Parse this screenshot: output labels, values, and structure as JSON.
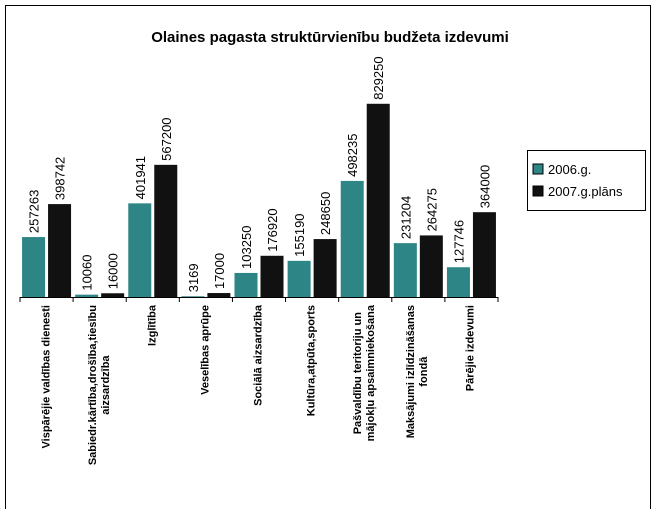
{
  "chart_data": {
    "type": "bar",
    "title": "Olaines pagasta struktūrvienību budžeta izdevumi",
    "categories": [
      "Vispārējie valdības dienesti",
      "Sabiedr.kārtība,drošība,tiesību\naizsardzība",
      "Izglītība",
      "Veselības aprūpe",
      "Sociālā aizsardzība",
      "Kultūra,atpūta,sports",
      "Pašvaldību teritoriju un\nmājokļu apsaimniekošana",
      "Maksājumi izlīdzināšanas\nfondā",
      "Pārējie izdevumi"
    ],
    "series": [
      {
        "name": "2006.g.",
        "color": "#2e8585",
        "values": [
          257263,
          10060,
          401941,
          3169,
          103250,
          155190,
          498235,
          231204,
          127746
        ]
      },
      {
        "name": "2007.g.plāns",
        "color": "#111111",
        "values": [
          398742,
          16000,
          567200,
          17000,
          176920,
          248650,
          829250,
          264275,
          364000
        ]
      }
    ],
    "ylim": [
      0,
      1000000
    ],
    "legend": "right"
  }
}
